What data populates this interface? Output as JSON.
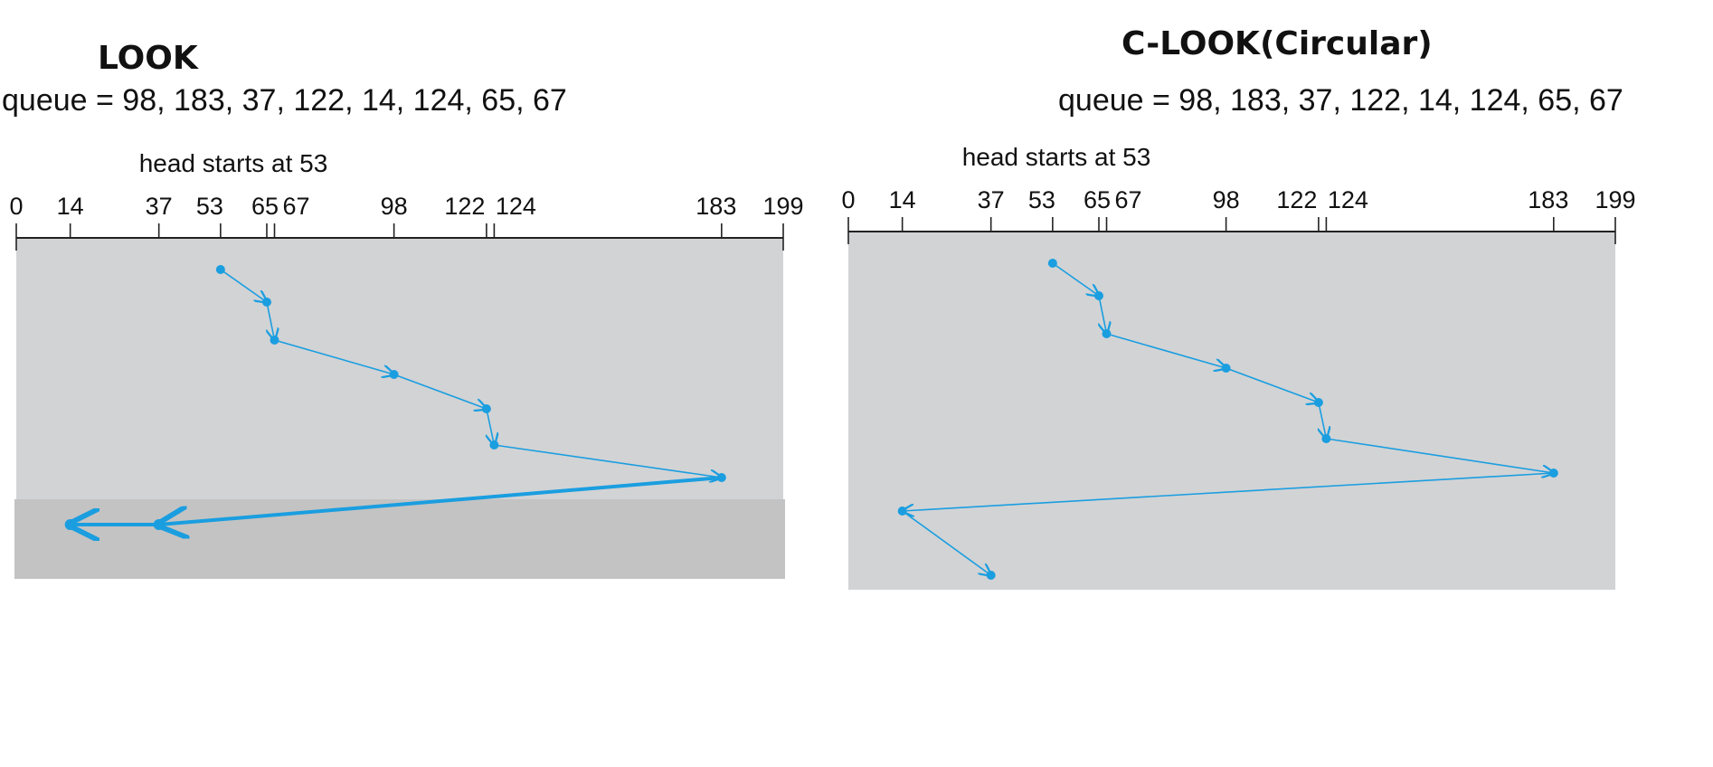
{
  "colors": {
    "path": "#1a9ee0",
    "background": "#d2d3d5",
    "band": "#c3c3c3",
    "axis": "#222222"
  },
  "panels": [
    {
      "id": "look",
      "title": "LOOK",
      "queue_text": "queue = 98, 183, 37, 122, 14, 124, 65, 67",
      "head_text": "head starts at 53",
      "axis_min": 0,
      "axis_max": 199,
      "tick_values": [
        0,
        14,
        37,
        53,
        65,
        67,
        98,
        122,
        124,
        183,
        199
      ],
      "tick_labels": [
        "0",
        "14",
        "37",
        "53",
        "65",
        "67",
        "98",
        "122",
        "124",
        "183",
        "199"
      ],
      "service_order": [
        53,
        65,
        67,
        98,
        122,
        124,
        183,
        37,
        14
      ],
      "return_sweep_highlighted": true
    },
    {
      "id": "clook",
      "title": "C-LOOK(Circular)",
      "queue_text": "queue = 98, 183, 37, 122, 14, 124, 65, 67",
      "head_text": "head starts at 53",
      "axis_min": 0,
      "axis_max": 199,
      "tick_values": [
        0,
        14,
        37,
        53,
        65,
        67,
        98,
        122,
        124,
        183,
        199
      ],
      "tick_labels": [
        "0",
        "14",
        "37",
        "53",
        "65",
        "67",
        "98",
        "122",
        "124",
        "183",
        "199"
      ],
      "service_order": [
        53,
        65,
        67,
        98,
        122,
        124,
        183,
        14,
        37
      ],
      "return_sweep_highlighted": false
    }
  ]
}
